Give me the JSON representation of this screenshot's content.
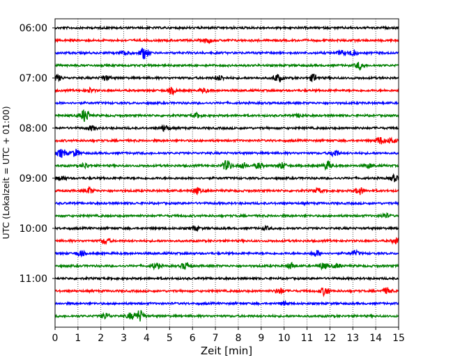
{
  "chart_data": {
    "type": "line",
    "subtype": "helicorder",
    "title": "",
    "xlabel": "Zeit  [min]",
    "ylabel": "UTC (Lokalzeit = UTC + 01:00)",
    "xlim": [
      0,
      15
    ],
    "x_ticks": [
      "0",
      "1",
      "2",
      "3",
      "4",
      "5",
      "6",
      "7",
      "8",
      "9",
      "10",
      "11",
      "12",
      "13",
      "14",
      "15"
    ],
    "y_tick_labels": [
      "06:00",
      "07:00",
      "08:00",
      "09:00",
      "10:00",
      "11:00"
    ],
    "grid": "vertical dotted",
    "trace_interval_min": 15,
    "trace_colors": [
      "#000000",
      "#ff0000",
      "#0000ff",
      "#008000"
    ],
    "traces": [
      {
        "start": "06:00",
        "color": "#000000",
        "bursts": []
      },
      {
        "start": "06:15",
        "color": "#ff0000",
        "bursts": [
          {
            "t": 6.7,
            "a": 3
          }
        ]
      },
      {
        "start": "06:30",
        "color": "#0000ff",
        "bursts": [
          {
            "t": 3.9,
            "a": 8
          },
          {
            "t": 3.1,
            "a": 4
          },
          {
            "t": 13.0,
            "a": 4
          },
          {
            "t": 12.5,
            "a": 3
          }
        ]
      },
      {
        "start": "06:45",
        "color": "#008000",
        "bursts": [
          {
            "t": 13.3,
            "a": 5
          }
        ]
      },
      {
        "start": "07:00",
        "color": "#000000",
        "bursts": [
          {
            "t": 0.1,
            "a": 4
          },
          {
            "t": 9.7,
            "a": 5
          },
          {
            "t": 11.3,
            "a": 5
          },
          {
            "t": 2.2,
            "a": 3
          },
          {
            "t": 7.2,
            "a": 3
          }
        ]
      },
      {
        "start": "07:15",
        "color": "#ff0000",
        "bursts": [
          {
            "t": 1.5,
            "a": 3
          },
          {
            "t": 5.1,
            "a": 4
          },
          {
            "t": 6.5,
            "a": 3
          }
        ]
      },
      {
        "start": "07:30",
        "color": "#0000ff",
        "bursts": []
      },
      {
        "start": "07:45",
        "color": "#008000",
        "bursts": [
          {
            "t": 1.3,
            "a": 9
          },
          {
            "t": 6.2,
            "a": 3
          },
          {
            "t": 10.7,
            "a": 2
          }
        ]
      },
      {
        "start": "08:00",
        "color": "#000000",
        "bursts": [
          {
            "t": 1.6,
            "a": 3
          },
          {
            "t": 4.8,
            "a": 4
          }
        ]
      },
      {
        "start": "08:15",
        "color": "#ff0000",
        "bursts": [
          {
            "t": 14.2,
            "a": 5
          },
          {
            "t": 14.7,
            "a": 4
          }
        ]
      },
      {
        "start": "08:30",
        "color": "#0000ff",
        "bursts": [
          {
            "t": 0.3,
            "a": 6
          },
          {
            "t": 0.9,
            "a": 5
          },
          {
            "t": 12.2,
            "a": 5
          }
        ]
      },
      {
        "start": "08:45",
        "color": "#008000",
        "bursts": [
          {
            "t": 7.5,
            "a": 7
          },
          {
            "t": 8.2,
            "a": 4
          },
          {
            "t": 8.9,
            "a": 4
          },
          {
            "t": 9.9,
            "a": 4
          },
          {
            "t": 11.9,
            "a": 6
          },
          {
            "t": 13.7,
            "a": 3
          },
          {
            "t": 1.3,
            "a": 3
          }
        ]
      },
      {
        "start": "09:00",
        "color": "#000000",
        "bursts": [
          {
            "t": 0.3,
            "a": 3
          },
          {
            "t": 14.8,
            "a": 4
          }
        ]
      },
      {
        "start": "09:15",
        "color": "#ff0000",
        "bursts": [
          {
            "t": 1.5,
            "a": 4
          },
          {
            "t": 6.2,
            "a": 4
          },
          {
            "t": 13.3,
            "a": 5
          },
          {
            "t": 11.5,
            "a": 3
          }
        ]
      },
      {
        "start": "09:30",
        "color": "#0000ff",
        "bursts": []
      },
      {
        "start": "09:45",
        "color": "#008000",
        "bursts": [
          {
            "t": 14.4,
            "a": 3
          }
        ]
      },
      {
        "start": "10:00",
        "color": "#000000",
        "bursts": [
          {
            "t": 6.1,
            "a": 3
          },
          {
            "t": 9.2,
            "a": 2
          }
        ]
      },
      {
        "start": "10:15",
        "color": "#ff0000",
        "bursts": [
          {
            "t": 2.2,
            "a": 4
          },
          {
            "t": 14.9,
            "a": 4
          }
        ]
      },
      {
        "start": "10:30",
        "color": "#0000ff",
        "bursts": [
          {
            "t": 1.1,
            "a": 4
          },
          {
            "t": 11.4,
            "a": 4
          },
          {
            "t": 13.1,
            "a": 3
          }
        ]
      },
      {
        "start": "10:45",
        "color": "#008000",
        "bursts": [
          {
            "t": 4.4,
            "a": 4
          },
          {
            "t": 5.7,
            "a": 5
          },
          {
            "t": 10.3,
            "a": 4
          },
          {
            "t": 11.7,
            "a": 4
          },
          {
            "t": 12.3,
            "a": 3
          }
        ]
      },
      {
        "start": "11:00",
        "color": "#000000",
        "bursts": []
      },
      {
        "start": "11:15",
        "color": "#ff0000",
        "bursts": [
          {
            "t": 11.8,
            "a": 6
          },
          {
            "t": 9.8,
            "a": 4
          },
          {
            "t": 14.5,
            "a": 4
          }
        ]
      },
      {
        "start": "11:30",
        "color": "#0000ff",
        "bursts": [
          {
            "t": 10.0,
            "a": 2
          }
        ]
      },
      {
        "start": "11:45",
        "color": "#008000",
        "bursts": [
          {
            "t": 3.7,
            "a": 8
          },
          {
            "t": 2.2,
            "a": 4
          },
          {
            "t": 3.3,
            "a": 4
          }
        ]
      }
    ]
  }
}
